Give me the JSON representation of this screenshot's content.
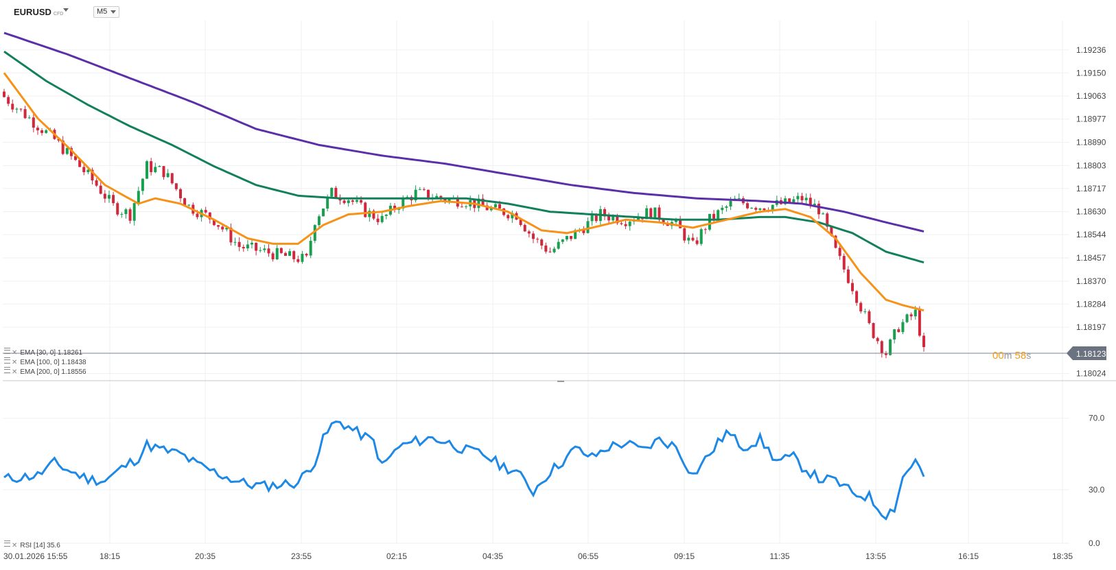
{
  "header": {
    "symbol": "EURUSD",
    "symbol_type": "CFD",
    "timeframe": "M5"
  },
  "timer": {
    "minutes": "00",
    "minutes_unit": "m",
    "seconds": "58",
    "seconds_unit": "s"
  },
  "colors": {
    "up": "#1a9e50",
    "down": "#d0283c",
    "ema30": "#f79218",
    "ema100": "#12805a",
    "ema200": "#5b2fa8",
    "rsi": "#1e88e5",
    "price_tag": "#6b7380"
  },
  "legend": {
    "ema30": "EMA [30, 0] 1.18261",
    "ema100": "EMA [100, 0] 1.18438",
    "ema200": "EMA [200, 0] 1.18556",
    "rsi": "RSI [14] 35.6"
  },
  "chart_data": [
    {
      "type": "candlestick",
      "price_axis_ticks": [
        "1.19236",
        "1.19150",
        "1.19063",
        "1.18977",
        "1.18890",
        "1.18803",
        "1.18717",
        "1.18630",
        "1.18544",
        "1.18457",
        "1.18370",
        "1.18284",
        "1.18197",
        "1.18024"
      ],
      "ylim": [
        1.17997,
        1.19346
      ],
      "x_ticks": [
        "30.01.2026  15:55",
        "18:15",
        "20:35",
        "23:55",
        "02:15",
        "04:35",
        "06:55",
        "09:15",
        "11:35",
        "13:55",
        "16:15",
        "18:35"
      ],
      "last_price": "1.18123",
      "price_anchors": [
        [
          0,
          1.1906
        ],
        [
          6,
          1.1898
        ],
        [
          12,
          1.189
        ],
        [
          18,
          1.188
        ],
        [
          22,
          1.1873
        ],
        [
          26,
          1.1865
        ],
        [
          30,
          1.1862
        ],
        [
          34,
          1.188
        ],
        [
          38,
          1.1878
        ],
        [
          44,
          1.1865
        ],
        [
          50,
          1.186
        ],
        [
          56,
          1.185
        ],
        [
          62,
          1.1848
        ],
        [
          68,
          1.1846
        ],
        [
          72,
          1.1845
        ],
        [
          74,
          1.186
        ],
        [
          78,
          1.187
        ],
        [
          82,
          1.1868
        ],
        [
          86,
          1.1863
        ],
        [
          90,
          1.186
        ],
        [
          94,
          1.1866
        ],
        [
          98,
          1.187
        ],
        [
          104,
          1.1868
        ],
        [
          110,
          1.1867
        ],
        [
          116,
          1.1864
        ],
        [
          122,
          1.1862
        ],
        [
          126,
          1.1853
        ],
        [
          130,
          1.1848
        ],
        [
          136,
          1.1855
        ],
        [
          142,
          1.1862
        ],
        [
          148,
          1.186
        ],
        [
          154,
          1.1863
        ],
        [
          160,
          1.1858
        ],
        [
          164,
          1.185
        ],
        [
          168,
          1.186
        ],
        [
          174,
          1.1867
        ],
        [
          180,
          1.1865
        ],
        [
          186,
          1.1866
        ],
        [
          190,
          1.1868
        ],
        [
          194,
          1.1864
        ],
        [
          198,
          1.1848
        ],
        [
          202,
          1.1835
        ],
        [
          206,
          1.182
        ],
        [
          210,
          1.181
        ],
        [
          213,
          1.182
        ],
        [
          217,
          1.1825
        ],
        [
          219,
          1.1812
        ]
      ],
      "ema30_series": [
        [
          0,
          1.1915
        ],
        [
          8,
          1.1898
        ],
        [
          16,
          1.1886
        ],
        [
          24,
          1.1873
        ],
        [
          32,
          1.1866
        ],
        [
          36,
          1.1868
        ],
        [
          42,
          1.1866
        ],
        [
          50,
          1.186
        ],
        [
          58,
          1.1853
        ],
        [
          64,
          1.1851
        ],
        [
          70,
          1.1851
        ],
        [
          76,
          1.1858
        ],
        [
          82,
          1.1862
        ],
        [
          90,
          1.1863
        ],
        [
          96,
          1.1865
        ],
        [
          104,
          1.1867
        ],
        [
          112,
          1.1866
        ],
        [
          120,
          1.1863
        ],
        [
          128,
          1.1856
        ],
        [
          134,
          1.1855
        ],
        [
          140,
          1.1857
        ],
        [
          148,
          1.186
        ],
        [
          156,
          1.1859
        ],
        [
          164,
          1.1857
        ],
        [
          172,
          1.186
        ],
        [
          180,
          1.1863
        ],
        [
          186,
          1.1864
        ],
        [
          192,
          1.1861
        ],
        [
          198,
          1.1853
        ],
        [
          204,
          1.184
        ],
        [
          210,
          1.183
        ],
        [
          214,
          1.1828
        ],
        [
          219,
          1.1826
        ]
      ],
      "ema100_series": [
        [
          0,
          1.1923
        ],
        [
          10,
          1.1912
        ],
        [
          20,
          1.1903
        ],
        [
          30,
          1.1895
        ],
        [
          40,
          1.1888
        ],
        [
          50,
          1.188
        ],
        [
          60,
          1.1873
        ],
        [
          70,
          1.1869
        ],
        [
          80,
          1.1868
        ],
        [
          90,
          1.1868
        ],
        [
          100,
          1.1868
        ],
        [
          110,
          1.1868
        ],
        [
          120,
          1.1866
        ],
        [
          130,
          1.1863
        ],
        [
          140,
          1.1862
        ],
        [
          150,
          1.1861
        ],
        [
          160,
          1.186
        ],
        [
          170,
          1.186
        ],
        [
          180,
          1.1861
        ],
        [
          186,
          1.1861
        ],
        [
          194,
          1.1859
        ],
        [
          202,
          1.1855
        ],
        [
          210,
          1.1848
        ],
        [
          219,
          1.1844
        ]
      ],
      "ema200_series": [
        [
          0,
          1.193
        ],
        [
          15,
          1.1922
        ],
        [
          30,
          1.1913
        ],
        [
          45,
          1.1904
        ],
        [
          60,
          1.1894
        ],
        [
          75,
          1.1888
        ],
        [
          90,
          1.1884
        ],
        [
          105,
          1.1881
        ],
        [
          120,
          1.1877
        ],
        [
          135,
          1.1873
        ],
        [
          150,
          1.187
        ],
        [
          165,
          1.1868
        ],
        [
          180,
          1.1867
        ],
        [
          190,
          1.1866
        ],
        [
          200,
          1.1863
        ],
        [
          210,
          1.1859
        ],
        [
          219,
          1.18556
        ]
      ]
    },
    {
      "type": "line",
      "name": "RSI [14]",
      "y_ticks": [
        "70.0",
        "30.0",
        "0.0"
      ],
      "ylim": [
        0,
        91
      ],
      "series": [
        [
          0,
          36
        ],
        [
          4,
          37
        ],
        [
          8,
          38
        ],
        [
          12,
          45
        ],
        [
          16,
          40
        ],
        [
          20,
          36
        ],
        [
          24,
          35
        ],
        [
          28,
          42
        ],
        [
          32,
          48
        ],
        [
          34,
          55
        ],
        [
          38,
          52
        ],
        [
          42,
          50
        ],
        [
          46,
          44
        ],
        [
          50,
          40
        ],
        [
          54,
          36
        ],
        [
          58,
          33
        ],
        [
          62,
          32
        ],
        [
          66,
          33
        ],
        [
          70,
          34
        ],
        [
          74,
          46
        ],
        [
          76,
          58
        ],
        [
          78,
          66
        ],
        [
          80,
          68
        ],
        [
          84,
          62
        ],
        [
          88,
          57
        ],
        [
          90,
          43
        ],
        [
          94,
          54
        ],
        [
          98,
          57
        ],
        [
          102,
          59
        ],
        [
          106,
          56
        ],
        [
          110,
          52
        ],
        [
          114,
          50
        ],
        [
          118,
          44
        ],
        [
          122,
          40
        ],
        [
          126,
          29
        ],
        [
          128,
          35
        ],
        [
          130,
          40
        ],
        [
          134,
          48
        ],
        [
          136,
          53
        ],
        [
          140,
          48
        ],
        [
          144,
          54
        ],
        [
          148,
          56
        ],
        [
          152,
          52
        ],
        [
          156,
          58
        ],
        [
          160,
          54
        ],
        [
          164,
          38
        ],
        [
          168,
          50
        ],
        [
          172,
          62
        ],
        [
          176,
          54
        ],
        [
          180,
          58
        ],
        [
          184,
          46
        ],
        [
          188,
          48
        ],
        [
          190,
          43
        ],
        [
          194,
          36
        ],
        [
          198,
          35
        ],
        [
          202,
          28
        ],
        [
          206,
          26
        ],
        [
          208,
          20
        ],
        [
          210,
          16
        ],
        [
          212,
          20
        ],
        [
          214,
          37
        ],
        [
          216,
          43
        ],
        [
          217,
          48
        ],
        [
          218,
          42
        ],
        [
          219,
          36
        ]
      ]
    }
  ]
}
